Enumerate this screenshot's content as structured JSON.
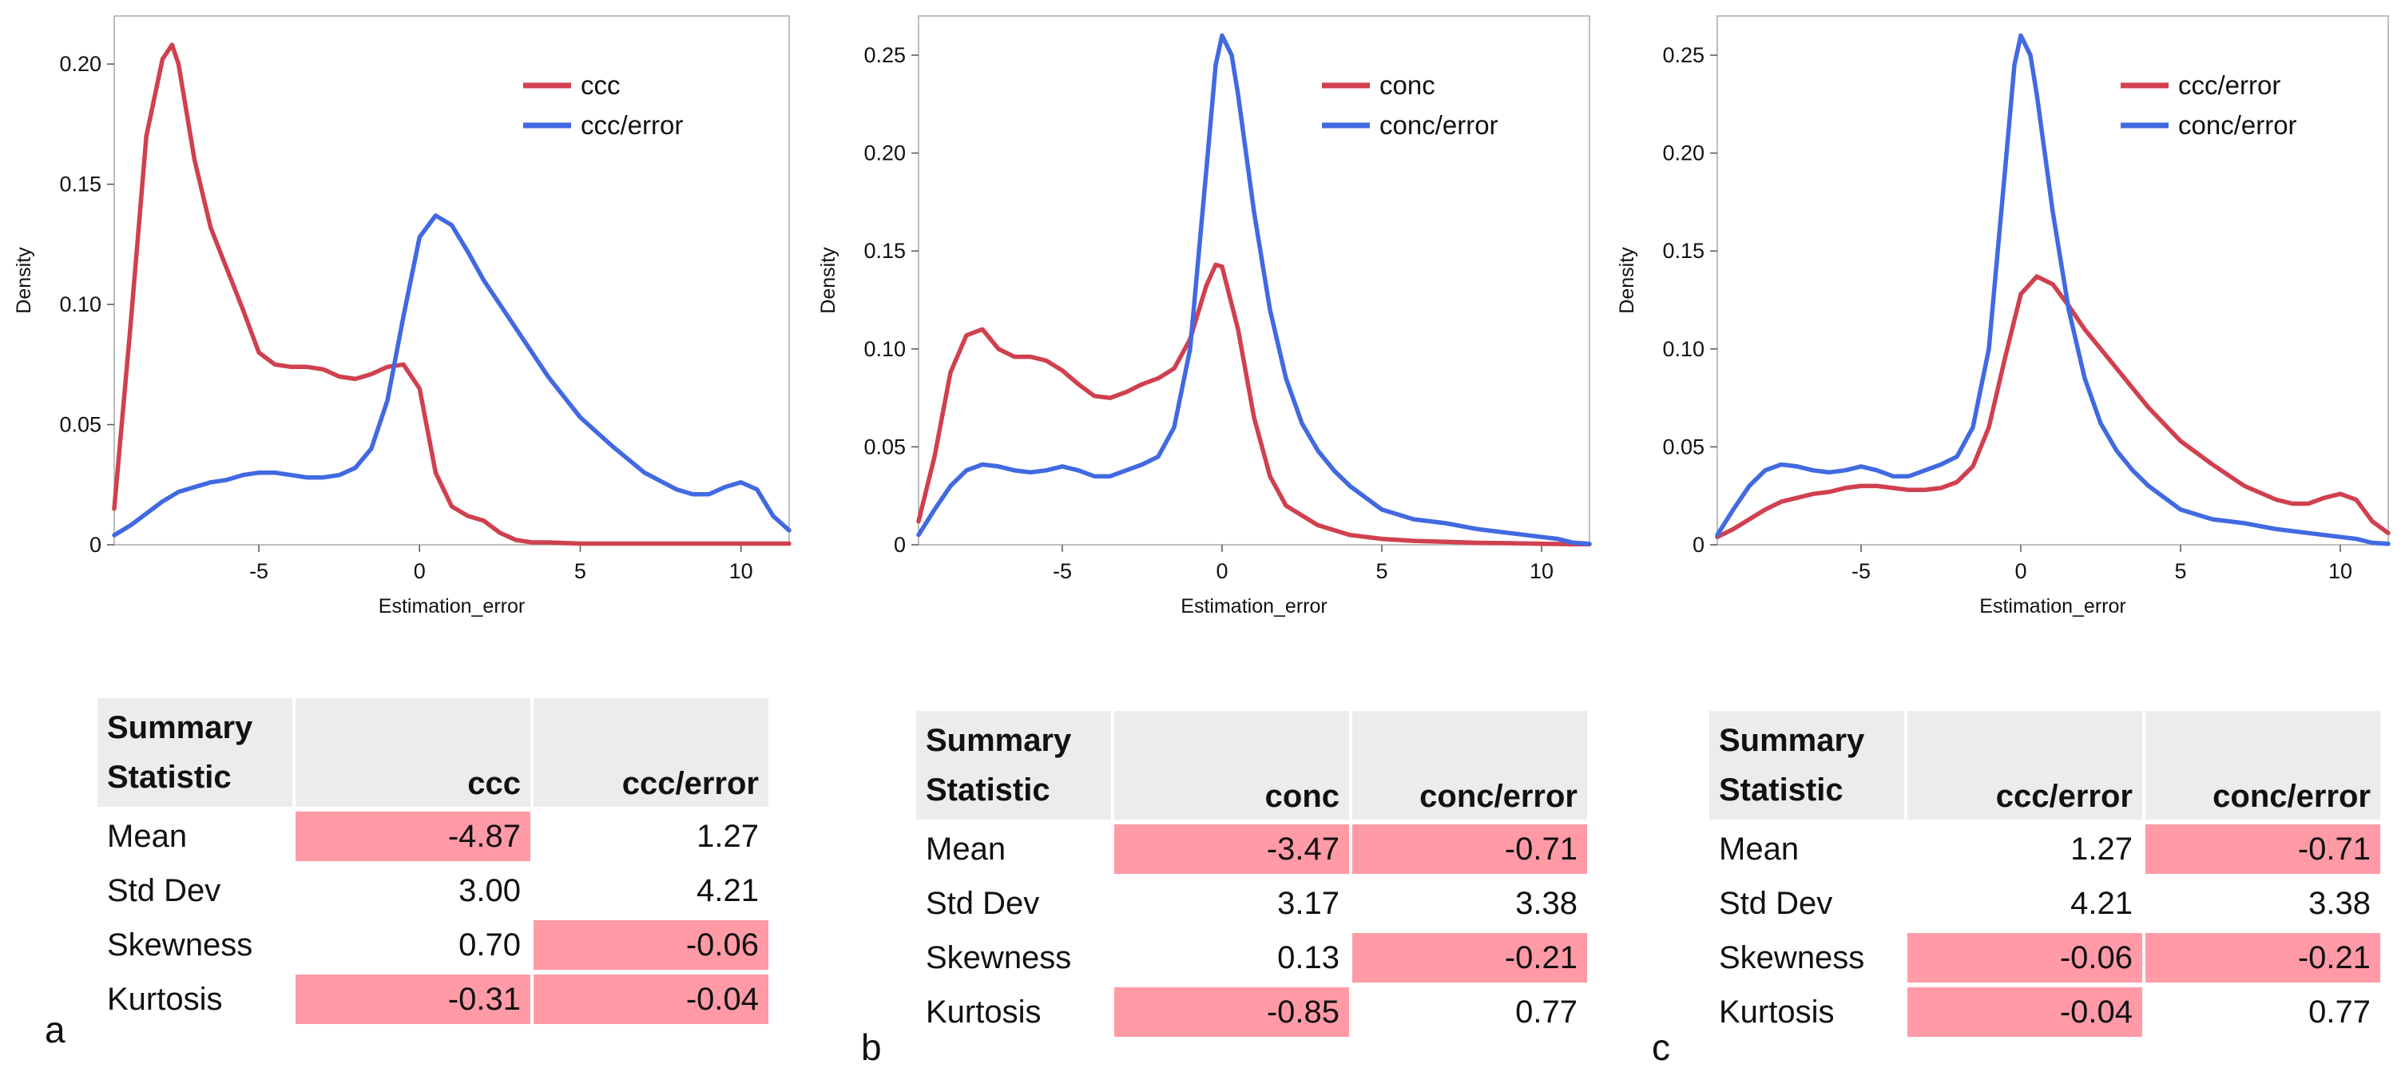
{
  "chart_data": [
    {
      "type": "line",
      "xlabel": "Estimation_error",
      "ylabel": "Density",
      "xlim": [
        -9.5,
        11.5
      ],
      "ylim": [
        0,
        0.22
      ],
      "xticks": [
        -5,
        0,
        5,
        10
      ],
      "yticks": [
        0,
        0.05,
        0.1,
        0.15,
        0.2
      ],
      "ytick_labels": [
        "0",
        "0.05",
        "0.10",
        "0.15",
        "0.20"
      ],
      "legend_position": "top-right",
      "series": [
        {
          "name": "ccc",
          "color": "#d0404f",
          "x": [
            -9.5,
            -9,
            -8.5,
            -8,
            -7.7,
            -7.5,
            -7,
            -6.5,
            -6,
            -5.5,
            -5,
            -4.5,
            -4,
            -3.5,
            -3,
            -2.5,
            -2,
            -1.5,
            -1,
            -0.5,
            0,
            0.5,
            1,
            1.5,
            2,
            2.5,
            3,
            3.5,
            4,
            5,
            6,
            7,
            8,
            9,
            10,
            11,
            11.5
          ],
          "y": [
            0.015,
            0.09,
            0.17,
            0.202,
            0.208,
            0.2,
            0.16,
            0.132,
            0.115,
            0.098,
            0.08,
            0.075,
            0.074,
            0.074,
            0.073,
            0.07,
            0.069,
            0.071,
            0.074,
            0.075,
            0.065,
            0.03,
            0.016,
            0.012,
            0.01,
            0.005,
            0.002,
            0.001,
            0.001,
            0.0005,
            0.0005,
            0.0005,
            0.0005,
            0.0005,
            0.0005,
            0.0005,
            0.0005
          ]
        },
        {
          "name": "ccc/error",
          "color": "#4169e1",
          "x": [
            -9.5,
            -9,
            -8.5,
            -8,
            -7.5,
            -7,
            -6.5,
            -6,
            -5.5,
            -5,
            -4.5,
            -4,
            -3.5,
            -3,
            -2.5,
            -2,
            -1.5,
            -1,
            -0.5,
            0,
            0.5,
            1,
            1.5,
            2,
            2.5,
            3,
            4,
            5,
            6,
            7,
            8,
            8.5,
            9,
            9.5,
            10,
            10.5,
            11,
            11.5
          ],
          "y": [
            0.004,
            0.008,
            0.013,
            0.018,
            0.022,
            0.024,
            0.026,
            0.027,
            0.029,
            0.03,
            0.03,
            0.029,
            0.028,
            0.028,
            0.029,
            0.032,
            0.04,
            0.06,
            0.095,
            0.128,
            0.137,
            0.133,
            0.122,
            0.11,
            0.1,
            0.09,
            0.07,
            0.053,
            0.041,
            0.03,
            0.023,
            0.021,
            0.021,
            0.024,
            0.026,
            0.023,
            0.012,
            0.006
          ]
        }
      ]
    },
    {
      "type": "line",
      "xlabel": "Estimation_error",
      "ylabel": "Density",
      "xlim": [
        -9.5,
        11.5
      ],
      "ylim": [
        0,
        0.27
      ],
      "xticks": [
        -5,
        0,
        5,
        10
      ],
      "yticks": [
        0,
        0.05,
        0.1,
        0.15,
        0.2,
        0.25
      ],
      "ytick_labels": [
        "0",
        "0.05",
        "0.10",
        "0.15",
        "0.20",
        "0.25"
      ],
      "legend_position": "top-right",
      "series": [
        {
          "name": "conc",
          "color": "#d0404f",
          "x": [
            -9.5,
            -9,
            -8.5,
            -8,
            -7.5,
            -7,
            -6.5,
            -6,
            -5.5,
            -5,
            -4.5,
            -4,
            -3.5,
            -3,
            -2.5,
            -2,
            -1.5,
            -1,
            -0.5,
            -0.2,
            0,
            0.5,
            1,
            1.5,
            2,
            3,
            4,
            5,
            6,
            7,
            8,
            9,
            10,
            11,
            11.5
          ],
          "y": [
            0.012,
            0.045,
            0.088,
            0.107,
            0.11,
            0.1,
            0.096,
            0.096,
            0.094,
            0.089,
            0.082,
            0.076,
            0.075,
            0.078,
            0.082,
            0.085,
            0.09,
            0.105,
            0.132,
            0.143,
            0.142,
            0.11,
            0.065,
            0.035,
            0.02,
            0.01,
            0.005,
            0.003,
            0.002,
            0.0015,
            0.001,
            0.0008,
            0.0005,
            0.0003,
            0.0003
          ]
        },
        {
          "name": "conc/error",
          "color": "#4169e1",
          "x": [
            -9.5,
            -9,
            -8.5,
            -8,
            -7.5,
            -7,
            -6.5,
            -6,
            -5.5,
            -5,
            -4.5,
            -4,
            -3.5,
            -3,
            -2.5,
            -2,
            -1.5,
            -1,
            -0.5,
            -0.2,
            0,
            0.3,
            0.5,
            1,
            1.5,
            2,
            2.5,
            3,
            3.5,
            4,
            5,
            6,
            7,
            8,
            9,
            10,
            10.5,
            11,
            11.5
          ],
          "y": [
            0.005,
            0.018,
            0.03,
            0.038,
            0.041,
            0.04,
            0.038,
            0.037,
            0.038,
            0.04,
            0.038,
            0.035,
            0.035,
            0.038,
            0.041,
            0.045,
            0.06,
            0.1,
            0.19,
            0.245,
            0.26,
            0.25,
            0.23,
            0.17,
            0.12,
            0.085,
            0.062,
            0.048,
            0.038,
            0.03,
            0.018,
            0.013,
            0.011,
            0.008,
            0.006,
            0.004,
            0.003,
            0.001,
            0.0005
          ]
        }
      ]
    },
    {
      "type": "line",
      "xlabel": "Estimation_error",
      "ylabel": "Density",
      "xlim": [
        -9.5,
        11.5
      ],
      "ylim": [
        0,
        0.27
      ],
      "xticks": [
        -5,
        0,
        5,
        10
      ],
      "yticks": [
        0,
        0.05,
        0.1,
        0.15,
        0.2,
        0.25
      ],
      "ytick_labels": [
        "0",
        "0.05",
        "0.10",
        "0.15",
        "0.20",
        "0.25"
      ],
      "legend_position": "top-right",
      "series": [
        {
          "name": "ccc/error",
          "color": "#d0404f",
          "x": [
            -9.5,
            -9,
            -8.5,
            -8,
            -7.5,
            -7,
            -6.5,
            -6,
            -5.5,
            -5,
            -4.5,
            -4,
            -3.5,
            -3,
            -2.5,
            -2,
            -1.5,
            -1,
            -0.5,
            0,
            0.5,
            1,
            1.5,
            2,
            2.5,
            3,
            4,
            5,
            6,
            7,
            8,
            8.5,
            9,
            9.5,
            10,
            10.5,
            11,
            11.5
          ],
          "y": [
            0.004,
            0.008,
            0.013,
            0.018,
            0.022,
            0.024,
            0.026,
            0.027,
            0.029,
            0.03,
            0.03,
            0.029,
            0.028,
            0.028,
            0.029,
            0.032,
            0.04,
            0.06,
            0.095,
            0.128,
            0.137,
            0.133,
            0.122,
            0.11,
            0.1,
            0.09,
            0.07,
            0.053,
            0.041,
            0.03,
            0.023,
            0.021,
            0.021,
            0.024,
            0.026,
            0.023,
            0.012,
            0.006
          ]
        },
        {
          "name": "conc/error",
          "color": "#4169e1",
          "x": [
            -9.5,
            -9,
            -8.5,
            -8,
            -7.5,
            -7,
            -6.5,
            -6,
            -5.5,
            -5,
            -4.5,
            -4,
            -3.5,
            -3,
            -2.5,
            -2,
            -1.5,
            -1,
            -0.5,
            -0.2,
            0,
            0.3,
            0.5,
            1,
            1.5,
            2,
            2.5,
            3,
            3.5,
            4,
            5,
            6,
            7,
            8,
            9,
            10,
            10.5,
            11,
            11.5
          ],
          "y": [
            0.005,
            0.018,
            0.03,
            0.038,
            0.041,
            0.04,
            0.038,
            0.037,
            0.038,
            0.04,
            0.038,
            0.035,
            0.035,
            0.038,
            0.041,
            0.045,
            0.06,
            0.1,
            0.19,
            0.245,
            0.26,
            0.25,
            0.23,
            0.17,
            0.12,
            0.085,
            0.062,
            0.048,
            0.038,
            0.03,
            0.018,
            0.013,
            0.011,
            0.008,
            0.006,
            0.004,
            0.003,
            0.001,
            0.0005
          ]
        }
      ]
    }
  ],
  "tables": [
    {
      "header": [
        "Summary Statistic",
        "ccc",
        "ccc/error"
      ],
      "rows": [
        {
          "label": "Mean",
          "values": [
            "-4.87",
            "1.27"
          ],
          "highlight": [
            true,
            false
          ]
        },
        {
          "label": "Std Dev",
          "values": [
            "3.00",
            "4.21"
          ],
          "highlight": [
            false,
            false
          ]
        },
        {
          "label": "Skewness",
          "values": [
            "0.70",
            "-0.06"
          ],
          "highlight": [
            false,
            true
          ]
        },
        {
          "label": "Kurtosis",
          "values": [
            "-0.31",
            "-0.04"
          ],
          "highlight": [
            true,
            true
          ]
        }
      ]
    },
    {
      "header": [
        "Summary Statistic",
        "conc",
        "conc/error"
      ],
      "rows": [
        {
          "label": "Mean",
          "values": [
            "-3.47",
            "-0.71"
          ],
          "highlight": [
            true,
            true
          ]
        },
        {
          "label": "Std Dev",
          "values": [
            "3.17",
            "3.38"
          ],
          "highlight": [
            false,
            false
          ]
        },
        {
          "label": "Skewness",
          "values": [
            "0.13",
            "-0.21"
          ],
          "highlight": [
            false,
            true
          ]
        },
        {
          "label": "Kurtosis",
          "values": [
            "-0.85",
            "0.77"
          ],
          "highlight": [
            true,
            false
          ]
        }
      ]
    },
    {
      "header": [
        "Summary Statistic",
        "ccc/error",
        "conc/error"
      ],
      "rows": [
        {
          "label": "Mean",
          "values": [
            "1.27",
            "-0.71"
          ],
          "highlight": [
            false,
            true
          ]
        },
        {
          "label": "Std Dev",
          "values": [
            "4.21",
            "3.38"
          ],
          "highlight": [
            false,
            false
          ]
        },
        {
          "label": "Skewness",
          "values": [
            "-0.06",
            "-0.21"
          ],
          "highlight": [
            true,
            true
          ]
        },
        {
          "label": "Kurtosis",
          "values": [
            "-0.04",
            "0.77"
          ],
          "highlight": [
            true,
            false
          ]
        }
      ]
    }
  ],
  "panel_labels": [
    "a",
    "b",
    "c"
  ]
}
